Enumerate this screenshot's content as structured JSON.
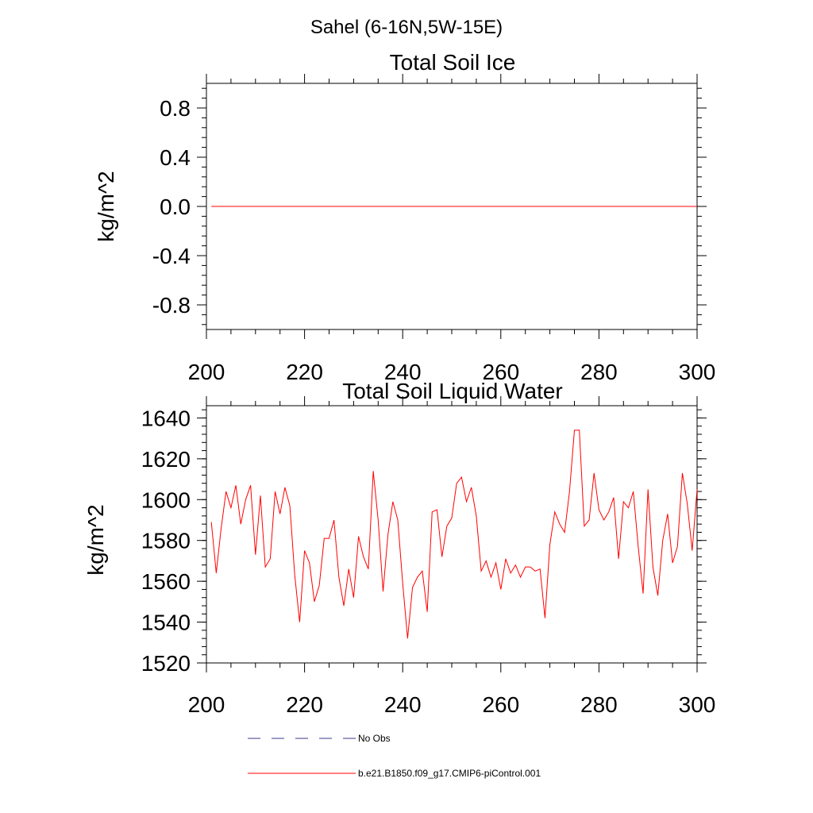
{
  "figure": {
    "main_title": "Sahel (6-16N,5W-15E)"
  },
  "legend": {
    "obs_label": "No Obs",
    "model_label": "b.e21.B1850.f09_g17.CMIP6-piControl.001",
    "obs_color": "#3a3a8a",
    "model_color": "#ff0000"
  },
  "chart_data": [
    {
      "type": "line",
      "title": "Total Soil Ice",
      "xlabel": "",
      "ylabel": "kg/m^2",
      "xlim": [
        200,
        300
      ],
      "ylim": [
        -1,
        1
      ],
      "xticks": [
        200,
        220,
        240,
        260,
        280,
        300
      ],
      "yticks": [
        -0.8,
        -0.4,
        0.0,
        0.4,
        0.8
      ],
      "ytick_labels": [
        "-0.8",
        "-0.4",
        "0.0",
        "0.4",
        "0.8"
      ],
      "grid": false,
      "series": [
        {
          "color": "#ff0000",
          "x": [
            201,
            300
          ],
          "y": [
            0,
            0
          ]
        }
      ]
    },
    {
      "type": "line",
      "title": "Total Soil Liquid Water",
      "xlabel": "",
      "ylabel": "kg/m^2",
      "xlim": [
        200,
        300
      ],
      "ylim": [
        1520,
        1646
      ],
      "xticks": [
        200,
        220,
        240,
        260,
        280,
        300
      ],
      "yticks": [
        1520,
        1540,
        1560,
        1580,
        1600,
        1620,
        1640
      ],
      "ytick_labels": [
        "1520",
        "1540",
        "1560",
        "1580",
        "1600",
        "1620",
        "1640"
      ],
      "grid": false,
      "series": [
        {
          "color": "#ff0000",
          "x": [
            201,
            202,
            203,
            204,
            205,
            206,
            207,
            208,
            209,
            210,
            211,
            212,
            213,
            214,
            215,
            216,
            217,
            218,
            219,
            220,
            221,
            222,
            223,
            224,
            225,
            226,
            227,
            228,
            229,
            230,
            231,
            232,
            233,
            234,
            235,
            236,
            237,
            238,
            239,
            240,
            241,
            242,
            243,
            244,
            245,
            246,
            247,
            248,
            249,
            250,
            251,
            252,
            253,
            254,
            255,
            256,
            257,
            258,
            259,
            260,
            261,
            262,
            263,
            264,
            265,
            266,
            267,
            268,
            269,
            270,
            271,
            272,
            273,
            274,
            275,
            276,
            277,
            278,
            279,
            280,
            281,
            282,
            283,
            284,
            285,
            286,
            287,
            288,
            289,
            290,
            291,
            292,
            293,
            294,
            295,
            296,
            297,
            298,
            299,
            300
          ],
          "y": [
            1589,
            1564,
            1586,
            1604,
            1596,
            1607,
            1588,
            1600,
            1607,
            1573,
            1602,
            1567,
            1571,
            1604,
            1593,
            1606,
            1597,
            1563,
            1540,
            1575,
            1569,
            1550,
            1558,
            1581,
            1581,
            1590,
            1562,
            1548,
            1566,
            1552,
            1582,
            1572,
            1566,
            1614,
            1590,
            1555,
            1583,
            1599,
            1590,
            1559,
            1532,
            1557,
            1562,
            1565,
            1545,
            1594,
            1595,
            1572,
            1587,
            1591,
            1608,
            1611,
            1599,
            1606,
            1592,
            1565,
            1570,
            1562,
            1569,
            1556,
            1571,
            1564,
            1568,
            1562,
            1567,
            1567,
            1565,
            1566,
            1542,
            1578,
            1594,
            1588,
            1584,
            1604,
            1634,
            1634,
            1587,
            1590,
            1613,
            1595,
            1590,
            1594,
            1601,
            1571,
            1599,
            1596,
            1604,
            1577,
            1554,
            1605,
            1567,
            1553,
            1580,
            1593,
            1569,
            1577,
            1613,
            1598,
            1575,
            1605
          ]
        }
      ]
    }
  ]
}
